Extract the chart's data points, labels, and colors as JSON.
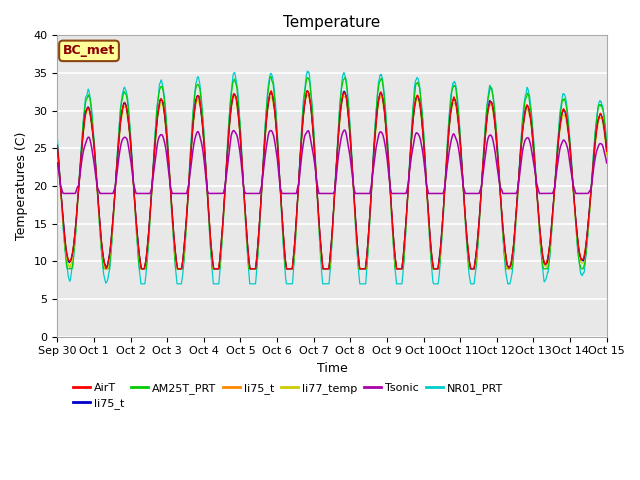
{
  "title": "Temperature",
  "xlabel": "Time",
  "ylabel": "Temperatures (C)",
  "ylim": [
    0,
    40
  ],
  "yticks": [
    0,
    5,
    10,
    15,
    20,
    25,
    30,
    35,
    40
  ],
  "plot_bg_color": "#e8e8e8",
  "fig_bg_color": "#ffffff",
  "annotation_text": "BC_met",
  "annotation_bg": "#ffff99",
  "annotation_border": "#8B4513",
  "annotation_text_color": "#8B0000",
  "legend_entries": [
    "AirT",
    "li75_t",
    "AM25T_PRT",
    "li75_t",
    "li77_temp",
    "Tsonic",
    "NR01_PRT"
  ],
  "legend_colors": [
    "#ff0000",
    "#0000cc",
    "#00cc00",
    "#ff8800",
    "#cccc00",
    "#aa00aa",
    "#00cccc"
  ],
  "x_tick_labels": [
    "Sep 30",
    "Oct 1",
    "Oct 2",
    "Oct 3",
    "Oct 4",
    "Oct 5",
    "Oct 6",
    "Oct 7",
    "Oct 8",
    "Oct 9",
    "Oct 10",
    "Oct 11",
    "Oct 12",
    "Oct 13",
    "Oct 14",
    "Oct 15"
  ],
  "title_fontsize": 11,
  "label_fontsize": 9,
  "tick_fontsize": 8
}
